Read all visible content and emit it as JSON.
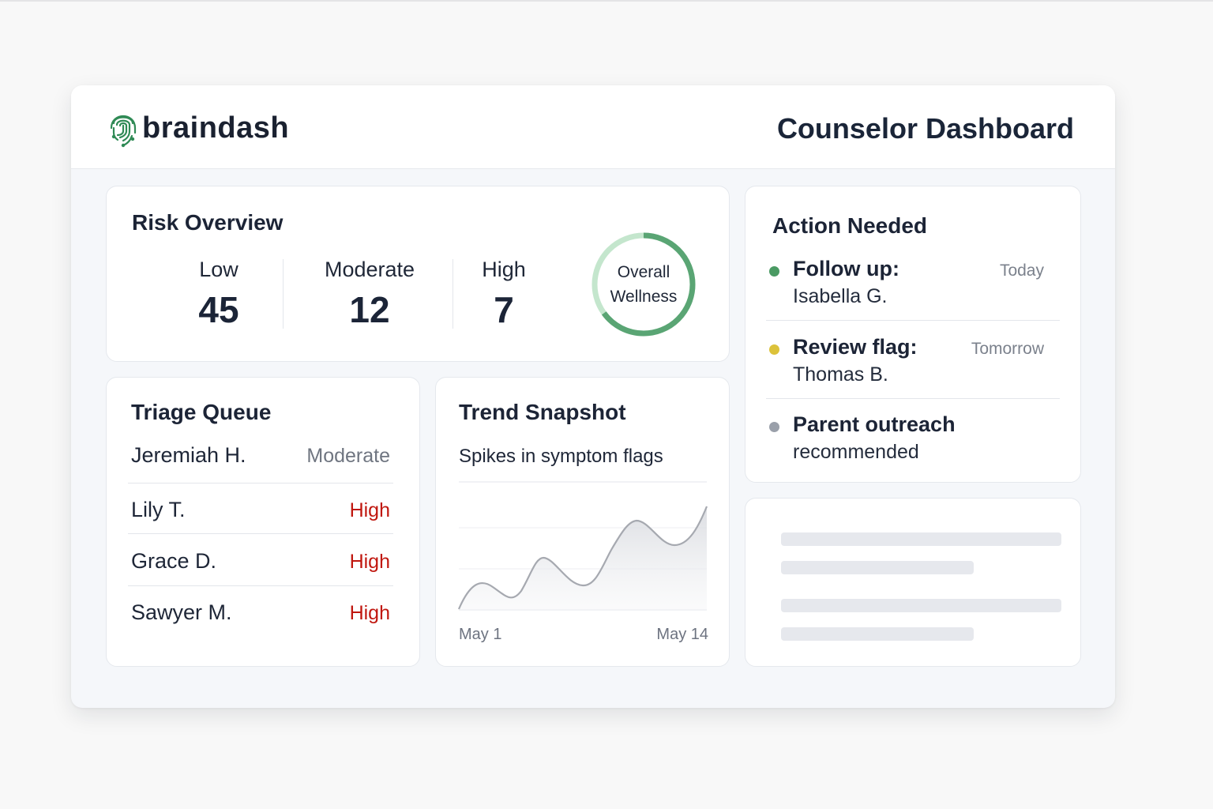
{
  "header": {
    "brand": "braindash",
    "title": "Counselor Dashboard"
  },
  "risk_overview": {
    "title": "Risk Overview",
    "stats": [
      {
        "label": "Low",
        "value": "45"
      },
      {
        "label": "Moderate",
        "value": "12"
      },
      {
        "label": "High",
        "value": "7"
      }
    ],
    "wellness": {
      "line1": "Overall",
      "line2": "Wellness",
      "progress_fraction": 0.65
    }
  },
  "action_needed": {
    "title": "Action Needed",
    "items": [
      {
        "main": "Follow up:",
        "sub": "Isabella G.",
        "when": "Today",
        "dot_color": "#4a9a63"
      },
      {
        "main": "Review flag:",
        "sub": "Thomas B.",
        "when": "Tomorrow",
        "dot_color": "#dcc23a"
      },
      {
        "main": "Parent outreach",
        "sub": "recommended",
        "when": "",
        "dot_color": "#9aa0aa"
      }
    ]
  },
  "triage_queue": {
    "title": "Triage Queue",
    "rows": [
      {
        "name": "Jeremiah H.",
        "level": "Moderate"
      },
      {
        "name": "Lily T.",
        "level": "High"
      },
      {
        "name": "Grace D.",
        "level": "High"
      },
      {
        "name": "Sawyer M.",
        "level": "High"
      }
    ]
  },
  "trend_snapshot": {
    "title": "Trend Snapshot",
    "subtitle": "Spikes in symptom flags",
    "x_start": "May 1",
    "x_end": "May 14"
  },
  "colors": {
    "brand_green": "#2f8a55",
    "wellness_green": "#5aa574",
    "wellness_track": "#c4e6cd",
    "high": "#c0170f",
    "moderate": "#6f7580"
  }
}
